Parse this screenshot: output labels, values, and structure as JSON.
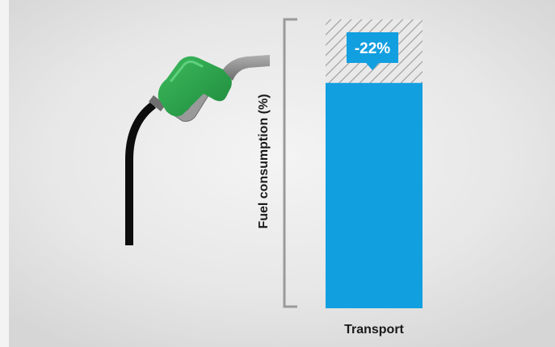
{
  "colors": {
    "bar": "#129fe0",
    "callout": "#129fe0",
    "nozzle_green": "#2fa84f",
    "hose_black": "#0d0d0d",
    "hose_gray": "#8a8a8a",
    "bracket": "#9a9a9a",
    "hatch": "#9a9a9a"
  },
  "icons": [
    "fuel-nozzle-icon"
  ],
  "chart_data": {
    "type": "bar",
    "ylabel": "Fuel consumption (%)",
    "categories": [
      "Transport"
    ],
    "series": [
      {
        "values": [
          78
        ]
      }
    ],
    "baseline": [
      100
    ],
    "reduction_label": "-22%",
    "ylim": [
      0,
      100
    ],
    "grid": false,
    "legend": "none"
  }
}
